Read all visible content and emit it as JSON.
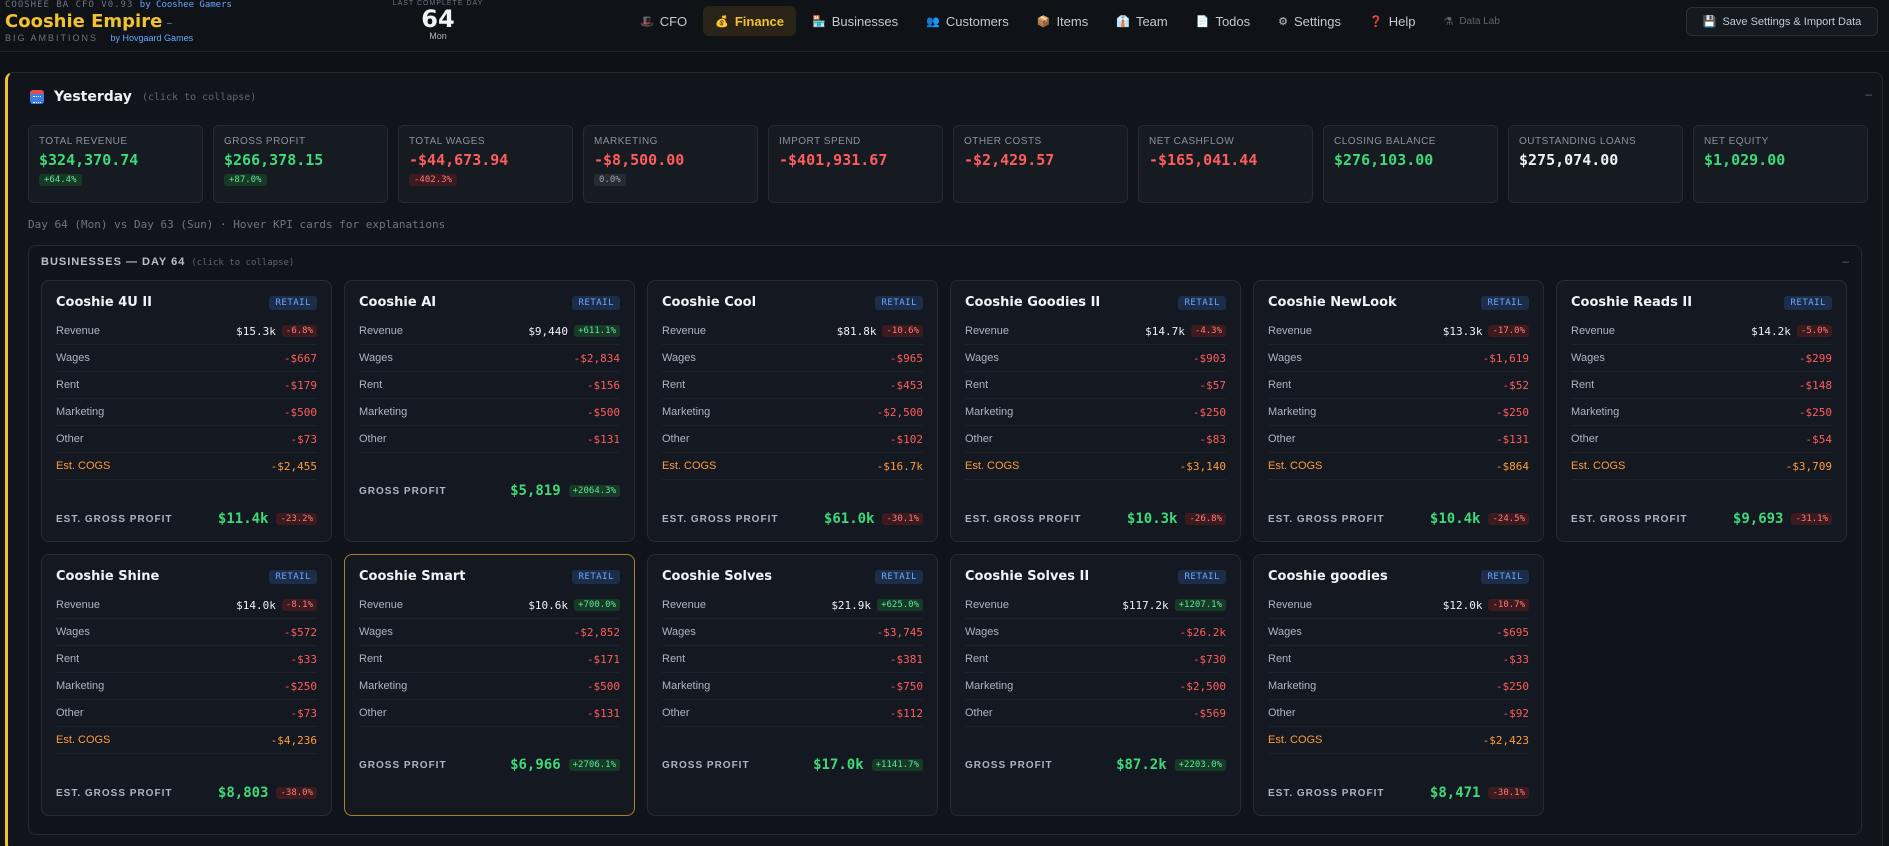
{
  "brand": {
    "version": "COOSHEE BA CFO V0.93",
    "version_by": "by Cooshee Gamers",
    "name": "Cooshie Empire",
    "name_dash": "–",
    "tagline": "BIG AMBITIONS",
    "tagline_by": "by Hovgaard Games"
  },
  "day": {
    "label": "LAST COMPLETE DAY",
    "number": "64",
    "weekday": "Mon"
  },
  "nav": [
    {
      "icon": "🎩",
      "label": "CFO",
      "name": "nav-cfo",
      "active": false
    },
    {
      "icon": "💰",
      "label": "Finance",
      "name": "nav-finance",
      "active": true
    },
    {
      "icon": "🏪",
      "label": "Businesses",
      "name": "nav-businesses",
      "active": false
    },
    {
      "icon": "👥",
      "label": "Customers",
      "name": "nav-customers",
      "active": false
    },
    {
      "icon": "📦",
      "label": "Items",
      "name": "nav-items",
      "active": false
    },
    {
      "icon": "👔",
      "label": "Team",
      "name": "nav-team",
      "active": false
    },
    {
      "icon": "📄",
      "label": "Todos",
      "name": "nav-todos",
      "active": false
    },
    {
      "icon": "⚙",
      "label": "Settings",
      "name": "nav-settings",
      "active": false
    },
    {
      "icon": "❓",
      "label": "Help",
      "name": "nav-help",
      "active": false
    },
    {
      "icon": "⚗",
      "label": "Data Lab",
      "name": "nav-data-lab",
      "active": false,
      "muted": true
    }
  ],
  "save_button": {
    "icon": "💾",
    "label": "Save Settings & Import Data"
  },
  "panel": {
    "title": "Yesterday",
    "hint": "(click to collapse)",
    "collapse": "–"
  },
  "kpis": [
    {
      "label": "TOTAL REVENUE",
      "value": "$324,370.74",
      "tone": "pos",
      "badge": "+64.4%",
      "badge_tone": "pos"
    },
    {
      "label": "GROSS PROFIT",
      "value": "$266,378.15",
      "tone": "pos",
      "badge": "+87.0%",
      "badge_tone": "pos"
    },
    {
      "label": "TOTAL WAGES",
      "value": "-$44,673.94",
      "tone": "neg",
      "badge": "-402.3%",
      "badge_tone": "neg"
    },
    {
      "label": "MARKETING",
      "value": "-$8,500.00",
      "tone": "neg",
      "badge": "0.0%",
      "badge_tone": "neu"
    },
    {
      "label": "IMPORT SPEND",
      "value": "-$401,931.67",
      "tone": "neg"
    },
    {
      "label": "OTHER COSTS",
      "value": "-$2,429.57",
      "tone": "neg"
    },
    {
      "label": "NET CASHFLOW",
      "value": "-$165,041.44",
      "tone": "neg"
    },
    {
      "label": "CLOSING BALANCE",
      "value": "$276,103.00",
      "tone": "pos"
    },
    {
      "label": "OUTSTANDING LOANS",
      "value": "$275,074.00",
      "tone": "neu"
    },
    {
      "label": "NET EQUITY",
      "value": "$1,029.00",
      "tone": "pos"
    }
  ],
  "compare_text": "Day 64 (Mon) vs Day 63 (Sun)  ·  Hover KPI cards for explanations",
  "businesses": {
    "title": "BUSINESSES — DAY 64",
    "hint": "(click to collapse)",
    "collapse": "–",
    "row_labels": {
      "revenue": "Revenue",
      "wages": "Wages",
      "rent": "Rent",
      "marketing": "Marketing",
      "other": "Other",
      "cogs": "Est. COGS"
    },
    "cards": [
      {
        "name": "Cooshie 4U II",
        "tag": "RETAIL",
        "revenue": "$15.3k",
        "rev_badge": "-6.8%",
        "rev_tone": "neg",
        "wages": "-$667",
        "rent": "-$179",
        "marketing": "-$500",
        "other": "-$73",
        "cogs": "-$2,455",
        "profit_label": "EST. GROSS PROFIT",
        "profit": "$11.4k",
        "profit_badge": "-23.2%",
        "profit_tone": "neg"
      },
      {
        "name": "Cooshie AI",
        "tag": "RETAIL",
        "revenue": "$9,440",
        "rev_badge": "+611.1%",
        "rev_tone": "pos",
        "wages": "-$2,834",
        "rent": "-$156",
        "marketing": "-$500",
        "other": "-$131",
        "cogs": null,
        "profit_label": "GROSS PROFIT",
        "profit": "$5,819",
        "profit_badge": "+2064.3%",
        "profit_tone": "pos"
      },
      {
        "name": "Cooshie Cool",
        "tag": "RETAIL",
        "revenue": "$81.8k",
        "rev_badge": "-10.6%",
        "rev_tone": "neg",
        "wages": "-$965",
        "rent": "-$453",
        "marketing": "-$2,500",
        "other": "-$102",
        "cogs": "-$16.7k",
        "profit_label": "EST. GROSS PROFIT",
        "profit": "$61.0k",
        "profit_badge": "-30.1%",
        "profit_tone": "neg"
      },
      {
        "name": "Cooshie Goodies II",
        "tag": "RETAIL",
        "revenue": "$14.7k",
        "rev_badge": "-4.3%",
        "rev_tone": "neg",
        "wages": "-$903",
        "rent": "-$57",
        "marketing": "-$250",
        "other": "-$83",
        "cogs": "-$3,140",
        "profit_label": "EST. GROSS PROFIT",
        "profit": "$10.3k",
        "profit_badge": "-26.8%",
        "profit_tone": "neg"
      },
      {
        "name": "Cooshie NewLook",
        "tag": "RETAIL",
        "revenue": "$13.3k",
        "rev_badge": "-17.0%",
        "rev_tone": "neg",
        "wages": "-$1,619",
        "rent": "-$52",
        "marketing": "-$250",
        "other": "-$131",
        "cogs": "-$864",
        "profit_label": "EST. GROSS PROFIT",
        "profit": "$10.4k",
        "profit_badge": "-24.5%",
        "profit_tone": "neg"
      },
      {
        "name": "Cooshie Reads II",
        "tag": "RETAIL",
        "revenue": "$14.2k",
        "rev_badge": "-5.0%",
        "rev_tone": "neg",
        "wages": "-$299",
        "rent": "-$148",
        "marketing": "-$250",
        "other": "-$54",
        "cogs": "-$3,709",
        "profit_label": "EST. GROSS PROFIT",
        "profit": "$9,693",
        "profit_badge": "-31.1%",
        "profit_tone": "neg"
      },
      {
        "name": "Cooshie Shine",
        "tag": "RETAIL",
        "revenue": "$14.0k",
        "rev_badge": "-8.1%",
        "rev_tone": "neg",
        "wages": "-$572",
        "rent": "-$33",
        "marketing": "-$250",
        "other": "-$73",
        "cogs": "-$4,236",
        "profit_label": "EST. GROSS PROFIT",
        "profit": "$8,803",
        "profit_badge": "-38.0%",
        "profit_tone": "neg"
      },
      {
        "name": "Cooshie Smart",
        "tag": "RETAIL",
        "highlight": true,
        "revenue": "$10.6k",
        "rev_badge": "+700.0%",
        "rev_tone": "pos",
        "wages": "-$2,852",
        "rent": "-$171",
        "marketing": "-$500",
        "other": "-$131",
        "cogs": null,
        "profit_label": "GROSS PROFIT",
        "profit": "$6,966",
        "profit_badge": "+2706.1%",
        "profit_tone": "pos"
      },
      {
        "name": "Cooshie Solves",
        "tag": "RETAIL",
        "revenue": "$21.9k",
        "rev_badge": "+625.0%",
        "rev_tone": "pos",
        "wages": "-$3,745",
        "rent": "-$381",
        "marketing": "-$750",
        "other": "-$112",
        "cogs": null,
        "profit_label": "GROSS PROFIT",
        "profit": "$17.0k",
        "profit_badge": "+1141.7%",
        "profit_tone": "pos"
      },
      {
        "name": "Cooshie Solves II",
        "tag": "RETAIL",
        "revenue": "$117.2k",
        "rev_badge": "+1207.1%",
        "rev_tone": "pos",
        "wages": "-$26.2k",
        "rent": "-$730",
        "marketing": "-$2,500",
        "other": "-$569",
        "cogs": null,
        "profit_label": "GROSS PROFIT",
        "profit": "$87.2k",
        "profit_badge": "+2203.0%",
        "profit_tone": "pos"
      },
      {
        "name": "Cooshie goodies",
        "tag": "RETAIL",
        "revenue": "$12.0k",
        "rev_badge": "-10.7%",
        "rev_tone": "neg",
        "wages": "-$695",
        "rent": "-$33",
        "marketing": "-$250",
        "other": "-$92",
        "cogs": "-$2,423",
        "profit_label": "EST. GROSS PROFIT",
        "profit": "$8,471",
        "profit_badge": "-30.1%",
        "profit_tone": "neg"
      }
    ]
  }
}
